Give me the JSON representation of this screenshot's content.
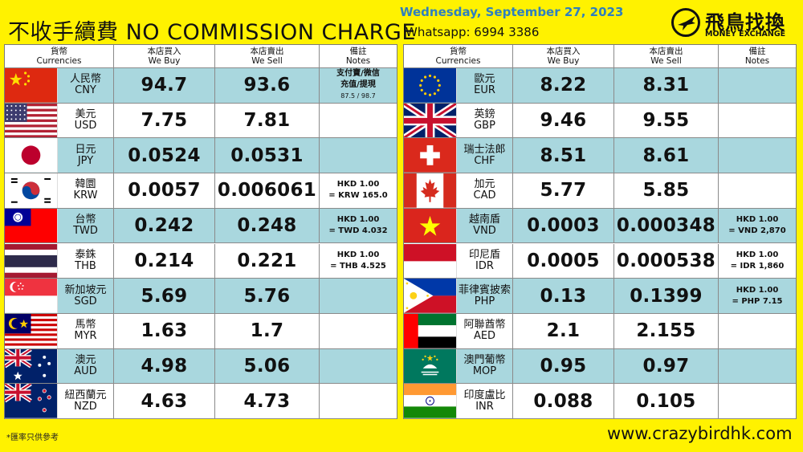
{
  "header": {
    "title": "不收手續費 NO COMMISSION CHARGE",
    "date": "Wednesday, September 27, 2023",
    "whatsapp": "Whatsapp: 6994  3386",
    "logo_cn": "飛鳥找換",
    "logo_en": "MONEY EXCHANGE"
  },
  "table_headers": {
    "currency_cn": "貨幣",
    "currency_en": "Currencies",
    "buy_cn": "本店買入",
    "buy_en": "We Buy",
    "sell_cn": "本店賣出",
    "sell_en": "We Sell",
    "notes_cn": "備註",
    "notes_en": "Notes"
  },
  "left_rows": [
    {
      "flag": "china-flag",
      "cn": "人民幣",
      "code": "CNY",
      "buy": "94.7",
      "sell": "93.6",
      "note1": "支付寶/微信",
      "note2": "充值/提現",
      "note3": "87.5 / 98.7"
    },
    {
      "flag": "usa-flag",
      "cn": "美元",
      "code": "USD",
      "buy": "7.75",
      "sell": "7.81",
      "note1": "",
      "note2": "",
      "note3": ""
    },
    {
      "flag": "japan-flag",
      "cn": "日元",
      "code": "JPY",
      "buy": "0.0524",
      "sell": "0.0531",
      "note1": "",
      "note2": "",
      "note3": ""
    },
    {
      "flag": "korea-flag",
      "cn": "韓圜",
      "code": "KRW",
      "buy": "0.0057",
      "sell": "0.006061",
      "note1": "HKD 1.00",
      "note2": "= KRW 165.0",
      "note3": ""
    },
    {
      "flag": "taiwan-flag",
      "cn": "台幣",
      "code": "TWD",
      "buy": "0.242",
      "sell": "0.248",
      "note1": "HKD 1.00",
      "note2": "= TWD 4.032",
      "note3": ""
    },
    {
      "flag": "thailand-flag",
      "cn": "泰銖",
      "code": "THB",
      "buy": "0.214",
      "sell": "0.221",
      "note1": "HKD 1.00",
      "note2": "= THB 4.525",
      "note3": ""
    },
    {
      "flag": "singapore-flag",
      "cn": "新加坡元",
      "code": "SGD",
      "buy": "5.69",
      "sell": "5.76",
      "note1": "",
      "note2": "",
      "note3": ""
    },
    {
      "flag": "malaysia-flag",
      "cn": "馬幣",
      "code": "MYR",
      "buy": "1.63",
      "sell": "1.7",
      "note1": "",
      "note2": "",
      "note3": ""
    },
    {
      "flag": "australia-flag",
      "cn": "澳元",
      "code": "AUD",
      "buy": "4.98",
      "sell": "5.06",
      "note1": "",
      "note2": "",
      "note3": ""
    },
    {
      "flag": "newzealand-flag",
      "cn": "紐西蘭元",
      "code": "NZD",
      "buy": "4.63",
      "sell": "4.73",
      "note1": "",
      "note2": "",
      "note3": ""
    }
  ],
  "right_rows": [
    {
      "flag": "eu-flag",
      "cn": "歐元",
      "code": "EUR",
      "buy": "8.22",
      "sell": "8.31",
      "note1": "",
      "note2": ""
    },
    {
      "flag": "uk-flag",
      "cn": "英鎊",
      "code": "GBP",
      "buy": "9.46",
      "sell": "9.55",
      "note1": "",
      "note2": ""
    },
    {
      "flag": "swiss-flag",
      "cn": "瑞士法郎",
      "code": "CHF",
      "buy": "8.51",
      "sell": "8.61",
      "note1": "",
      "note2": ""
    },
    {
      "flag": "canada-flag",
      "cn": "加元",
      "code": "CAD",
      "buy": "5.77",
      "sell": "5.85",
      "note1": "",
      "note2": ""
    },
    {
      "flag": "vietnam-flag",
      "cn": "越南盾",
      "code": "VND",
      "buy": "0.0003",
      "sell": "0.000348",
      "note1": "HKD 1.00",
      "note2": "= VND 2,870"
    },
    {
      "flag": "indonesia-flag",
      "cn": "印尼盾",
      "code": "IDR",
      "buy": "0.0005",
      "sell": "0.000538",
      "note1": "HKD 1.00",
      "note2": "= IDR 1,860"
    },
    {
      "flag": "philippines-flag",
      "cn": "菲律賓披索",
      "code": "PHP",
      "buy": "0.13",
      "sell": "0.1399",
      "note1": "HKD 1.00",
      "note2": "= PHP 7.15"
    },
    {
      "flag": "uae-flag",
      "cn": "阿聯酋幣",
      "code": "AED",
      "buy": "2.1",
      "sell": "2.155",
      "note1": "",
      "note2": ""
    },
    {
      "flag": "macau-flag",
      "cn": "澳門葡幣",
      "code": "MOP",
      "buy": "0.95",
      "sell": "0.97",
      "note1": "",
      "note2": ""
    },
    {
      "flag": "india-flag",
      "cn": "印度盧比",
      "code": "INR",
      "buy": "0.088",
      "sell": "0.105",
      "note1": "",
      "note2": ""
    }
  ],
  "footer": {
    "disclaimer": "*匯率只供參考",
    "website": "www.crazybirdhk.com"
  },
  "colors": {
    "background": "#FFF200",
    "teal_row": "#A9D7DE",
    "date_blue": "#2E7FBF"
  }
}
